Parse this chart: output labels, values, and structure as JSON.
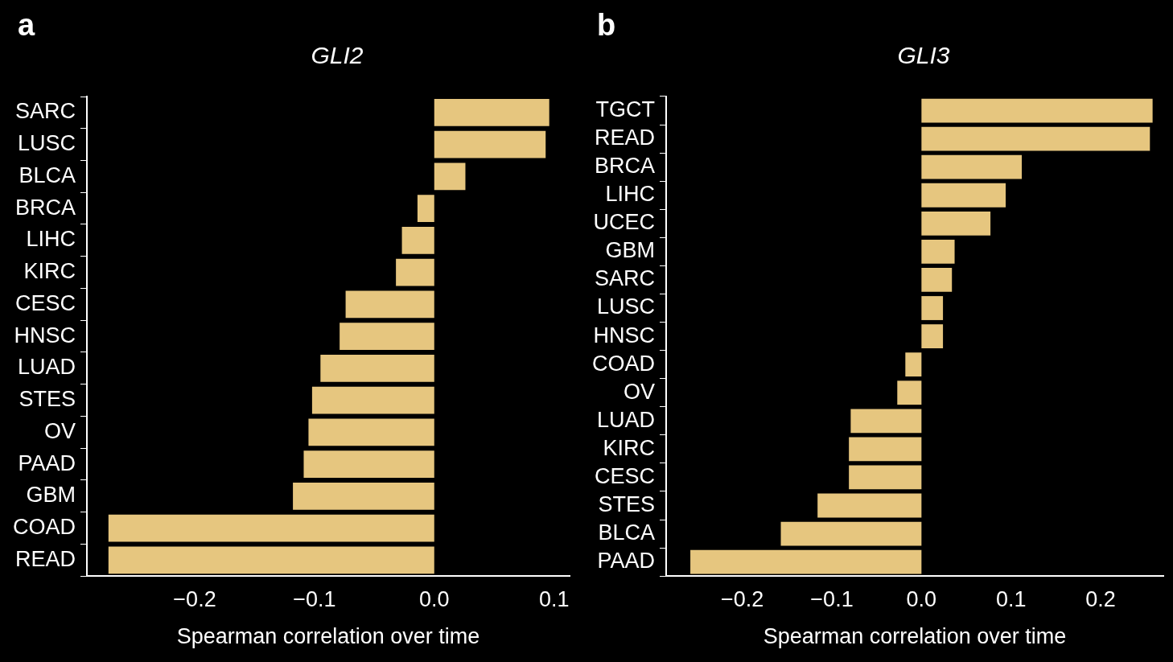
{
  "chart_data": [
    {
      "type": "bar",
      "orientation": "horizontal",
      "title": "GLI2",
      "annotations": [
        "a"
      ],
      "xlabel": "Spearman correlation over time",
      "color": "#e6c67f",
      "categories": [
        "SARC",
        "LUSC",
        "BLCA",
        "BRCA",
        "LIHC",
        "KIRC",
        "CESC",
        "HNSC",
        "LUAD",
        "STES",
        "OV",
        "PAAD",
        "GBM",
        "COAD",
        "READ"
      ],
      "values": [
        0.096,
        0.093,
        0.026,
        -0.014,
        -0.027,
        -0.032,
        -0.074,
        -0.079,
        -0.095,
        -0.102,
        -0.105,
        -0.109,
        -0.118,
        -0.272,
        -0.272
      ],
      "xlim": [
        -0.29,
        0.113
      ],
      "xticks": [
        {
          "value": -0.2,
          "label": "−0.2"
        },
        {
          "value": -0.1,
          "label": "−0.1"
        },
        {
          "value": 0,
          "label": "0.0"
        },
        {
          "value": 0.1,
          "label": "0.1"
        }
      ]
    },
    {
      "type": "bar",
      "orientation": "horizontal",
      "title": "GLI3",
      "annotations": [
        "b"
      ],
      "xlabel": "Spearman correlation over time",
      "color": "#e6c67f",
      "categories": [
        "TGCT",
        "READ",
        "BRCA",
        "LIHC",
        "UCEC",
        "GBM",
        "SARC",
        "LUSC",
        "HNSC",
        "COAD",
        "OV",
        "LUAD",
        "KIRC",
        "CESC",
        "STES",
        "BLCA",
        "PAAD"
      ],
      "values": [
        0.258,
        0.255,
        0.112,
        0.094,
        0.077,
        0.037,
        0.034,
        0.024,
        0.024,
        -0.018,
        -0.027,
        -0.079,
        -0.081,
        -0.081,
        -0.116,
        -0.157,
        -0.258
      ],
      "xlim": [
        -0.285,
        0.27
      ],
      "xticks": [
        {
          "value": -0.2,
          "label": "−0.2"
        },
        {
          "value": -0.1,
          "label": "−0.1"
        },
        {
          "value": 0,
          "label": "0.0"
        },
        {
          "value": 0.1,
          "label": "0.1"
        },
        {
          "value": 0.2,
          "label": "0.2"
        }
      ]
    }
  ]
}
